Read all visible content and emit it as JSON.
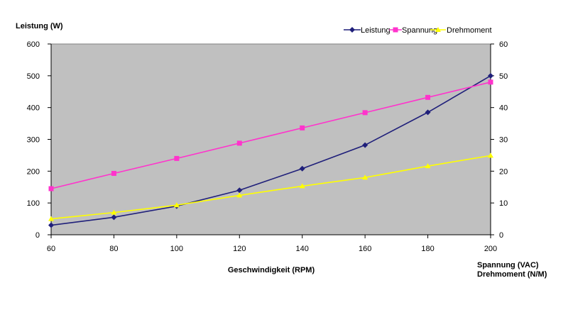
{
  "chart_data": {
    "type": "line",
    "xlabel": "Geschwindigkeit (RPM)",
    "ylabel_left": "Leistung (W)",
    "ylabel_right": [
      "Spannung (VAC)",
      "Drehmoment (N/M)"
    ],
    "x": [
      60,
      80,
      100,
      120,
      140,
      160,
      180,
      200
    ],
    "xlim": [
      60,
      200
    ],
    "x_ticks": [
      "60",
      "80",
      "100",
      "120",
      "140",
      "160",
      "180",
      "200"
    ],
    "ylim_left": [
      0,
      600
    ],
    "y_ticks_left": [
      "0",
      "100",
      "200",
      "300",
      "400",
      "500",
      "600"
    ],
    "ylim_right": [
      0,
      60
    ],
    "y_ticks_right": [
      "0",
      "10",
      "20",
      "30",
      "40",
      "50",
      "60"
    ],
    "grid": false,
    "plot_background": "#c0c0c0",
    "legend_position": "top-right",
    "series": [
      {
        "name": "Leistung",
        "axis": "left",
        "marker": "diamond",
        "color": "#1f1f7a",
        "values": [
          30,
          55,
          90,
          140,
          208,
          282,
          385,
          500
        ]
      },
      {
        "name": "Spannung",
        "axis": "right",
        "marker": "square",
        "color": "#ff33cc",
        "values": [
          14.5,
          19.3,
          24.0,
          28.8,
          33.6,
          38.4,
          43.2,
          48.0
        ]
      },
      {
        "name": "Drehmoment",
        "axis": "right",
        "marker": "triangle",
        "color": "#ffff00",
        "values": [
          5.0,
          7.0,
          9.3,
          12.4,
          15.3,
          18.0,
          21.6,
          24.9
        ]
      }
    ]
  }
}
